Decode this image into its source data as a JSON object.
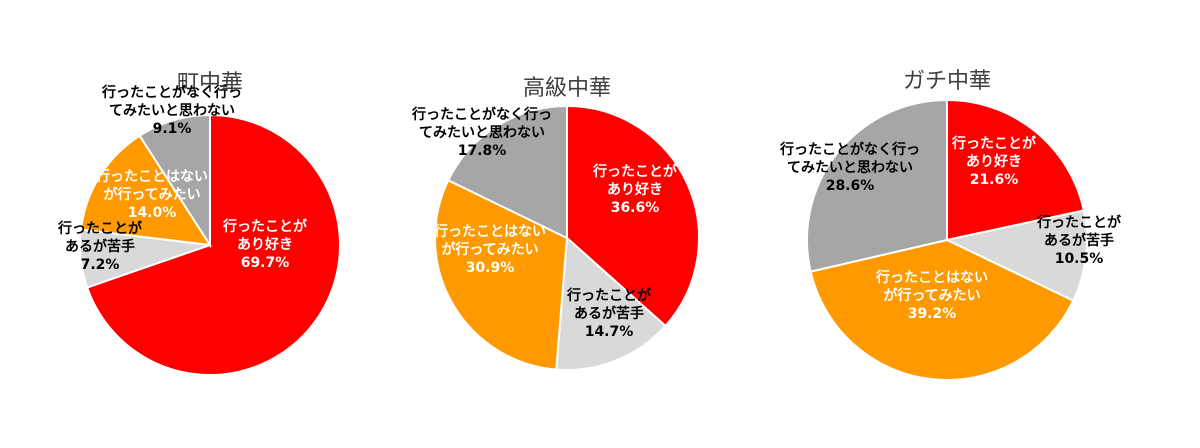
{
  "chart_data": [
    {
      "type": "pie",
      "title": "町中華",
      "categories": [
        "行ったことがあり好き",
        "行ったことがあるが苦手",
        "行ったことはないが行ってみたい",
        "行ったことがなく行ってみたいと思わない"
      ],
      "values": [
        69.7,
        7.2,
        14.0,
        9.1
      ],
      "labels": [
        {
          "lines": [
            "行ったことが",
            "あり好き",
            "69.7%"
          ],
          "color": "#ffffff"
        },
        {
          "lines": [
            "行ったことが",
            "あるが苦手",
            "7.2%"
          ],
          "color": "#000000"
        },
        {
          "lines": [
            "行ったことはない",
            "が行ってみたい",
            "14.0%"
          ],
          "color": "#ffffff"
        },
        {
          "lines": [
            "行ったことがなく行っ",
            "てみたいと思わない",
            "9.1%"
          ],
          "color": "#000000"
        }
      ],
      "colors": [
        "#ff0000",
        "#d9d9d9",
        "#ff9900",
        "#a6a6a6"
      ]
    },
    {
      "type": "pie",
      "title": "高級中華",
      "categories": [
        "行ったことがあり好き",
        "行ったことがあるが苦手",
        "行ったことはないが行ってみたい",
        "行ったことがなく行ってみたいと思わない"
      ],
      "values": [
        36.6,
        14.7,
        30.9,
        17.8
      ],
      "labels": [
        {
          "lines": [
            "行ったことが",
            "あり好き",
            "36.6%"
          ],
          "color": "#ffffff"
        },
        {
          "lines": [
            "行ったことが",
            "あるが苦手",
            "14.7%"
          ],
          "color": "#000000"
        },
        {
          "lines": [
            "行ったことはない",
            "が行ってみたい",
            "30.9%"
          ],
          "color": "#ffffff"
        },
        {
          "lines": [
            "行ったことがなく行っ",
            "てみたいと思わない",
            "17.8%"
          ],
          "color": "#000000"
        }
      ],
      "colors": [
        "#ff0000",
        "#d9d9d9",
        "#ff9900",
        "#a6a6a6"
      ]
    },
    {
      "type": "pie",
      "title": "ガチ中華",
      "categories": [
        "行ったことがあり好き",
        "行ったことがあるが苦手",
        "行ったことはないが行ってみたい",
        "行ったことがなく行ってみたいと思わない"
      ],
      "values": [
        21.6,
        10.5,
        39.2,
        28.6
      ],
      "labels": [
        {
          "lines": [
            "行ったことが",
            "あり好き",
            "21.6%"
          ],
          "color": "#ffffff"
        },
        {
          "lines": [
            "行ったことが",
            "あるが苦手",
            "10.5%"
          ],
          "color": "#000000"
        },
        {
          "lines": [
            "行ったことはない",
            "が行ってみたい",
            "39.2%"
          ],
          "color": "#ffffff"
        },
        {
          "lines": [
            "行ったことがなく行っ",
            "てみたいと思わない",
            "28.6%"
          ],
          "color": "#000000"
        }
      ],
      "colors": [
        "#ff0000",
        "#d9d9d9",
        "#ff9900",
        "#a6a6a6"
      ]
    }
  ]
}
